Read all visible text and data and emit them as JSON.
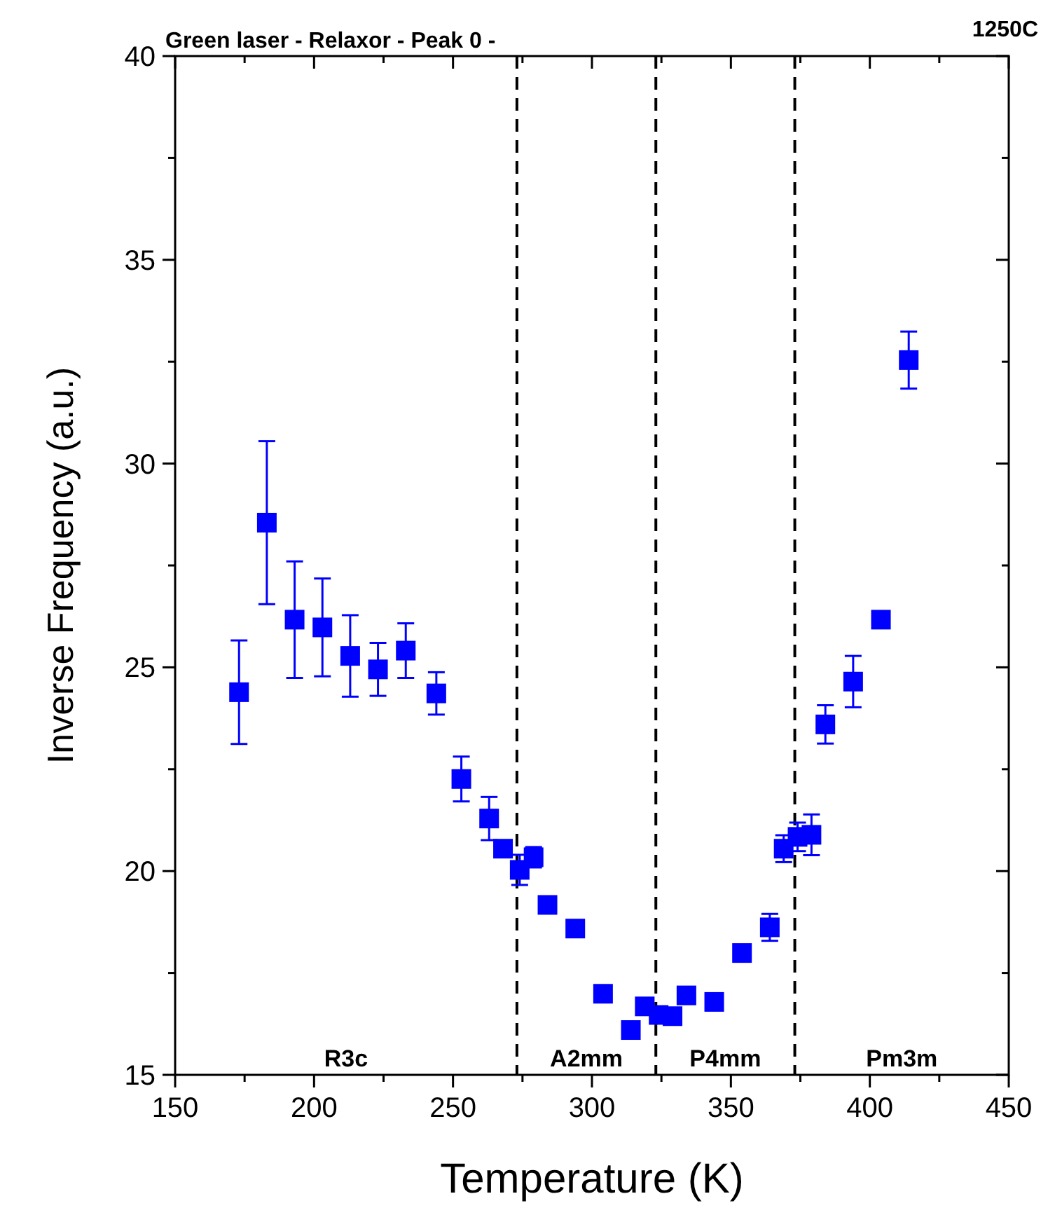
{
  "chart_data": {
    "type": "scatter",
    "title": "Green laser - Relaxor - Peak 0 -",
    "xlabel": "Temperature (K)",
    "ylabel": "Inverse Frequency (a.u.)",
    "x": [
      173,
      183,
      193,
      203,
      213,
      223,
      233,
      244,
      253,
      263,
      268,
      274,
      279,
      284,
      294,
      304,
      314,
      319,
      324,
      329,
      334,
      344,
      354,
      364,
      369,
      374,
      379,
      384,
      394,
      404,
      414
    ],
    "series": [
      {
        "color": "#0000ff",
        "values": [
          24.39,
          28.55,
          26.17,
          25.98,
          25.28,
          24.95,
          25.41,
          24.36,
          22.26,
          21.29,
          20.55,
          20.03,
          20.34,
          19.17,
          18.59,
          16.99,
          16.1,
          16.68,
          16.47,
          16.44,
          16.95,
          16.79,
          17.99,
          18.62,
          20.55,
          20.84,
          20.89,
          23.6,
          24.65,
          26.17,
          32.54
        ],
        "errors": [
          1.27,
          2.0,
          1.43,
          1.2,
          1.0,
          0.65,
          0.67,
          0.52,
          0.55,
          0.53,
          0.2,
          0.37,
          0.25,
          0.2,
          null,
          null,
          null,
          null,
          null,
          null,
          null,
          null,
          null,
          0.33,
          0.33,
          0.35,
          0.5,
          0.47,
          0.63,
          null,
          0.7
        ]
      }
    ],
    "xlim": [
      150,
      450
    ],
    "xticks": [
      150,
      200,
      250,
      300,
      350,
      400,
      450
    ],
    "ylim": [
      15,
      40
    ],
    "yticks": [
      15,
      20,
      25,
      30,
      35,
      40
    ],
    "ref_lines": [
      {
        "axis": "x",
        "value": 273,
        "color": "#000000",
        "line_style": "dashed"
      },
      {
        "axis": "x",
        "value": 323,
        "color": "#000000",
        "line_style": "dashed"
      },
      {
        "axis": "x",
        "value": 373,
        "color": "#000000",
        "line_style": "dashed"
      }
    ],
    "annotations": [
      "R3c",
      "A2mm",
      "P4mm",
      "Pm3m",
      "1250C"
    ],
    "marker": "square",
    "grid": false
  }
}
